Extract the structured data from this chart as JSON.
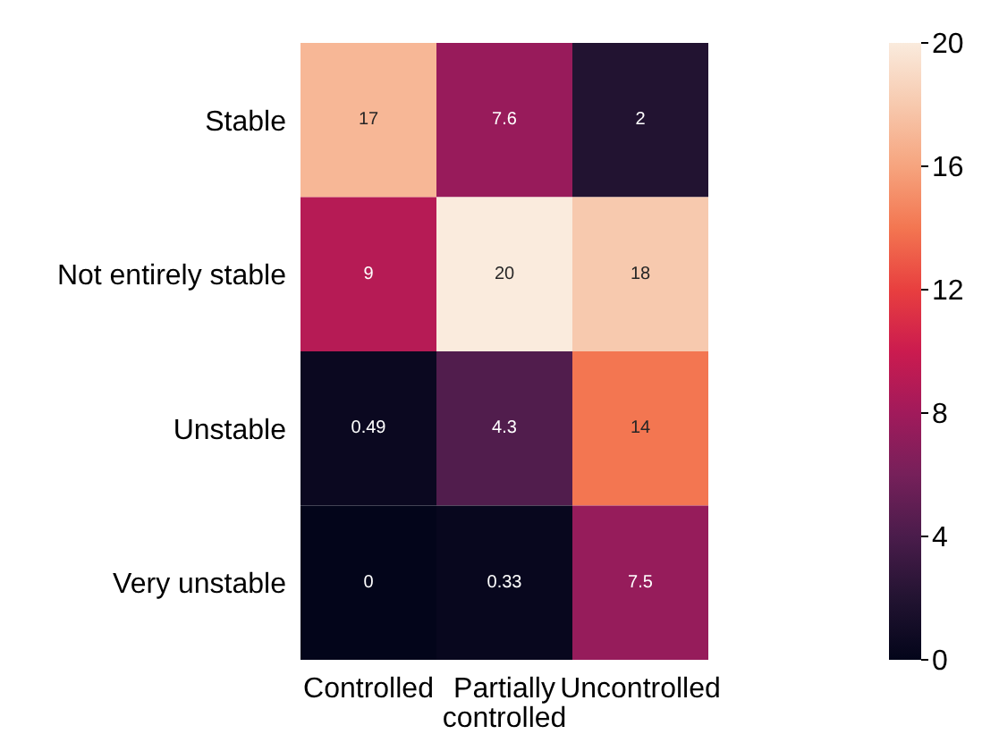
{
  "chart_data": {
    "type": "heatmap",
    "categories": [
      "Controlled",
      "Partially controlled",
      "Uncontrolled"
    ],
    "y_categories": [
      "Stable",
      "Not entirely stable",
      "Unstable",
      "Very unstable"
    ],
    "cells": [
      [
        17,
        7.6,
        2
      ],
      [
        9,
        20,
        18
      ],
      [
        0.49,
        4.3,
        14
      ],
      [
        0,
        0.33,
        7.5
      ]
    ],
    "clim": [
      0,
      20
    ],
    "cticks": [
      0,
      4,
      8,
      12,
      16,
      20
    ],
    "data_labels": true
  }
}
